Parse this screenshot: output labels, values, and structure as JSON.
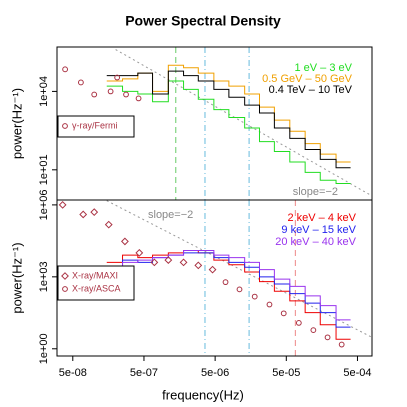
{
  "chart_data": [
    {
      "type": "line",
      "title": "Power Spectral Density",
      "ylabel": "power(Hz⁻¹)",
      "log_x": true,
      "log_y": true,
      "xlim": [
        3e-08,
        0.0008
      ],
      "ylim": [
        0.7,
        500000
      ],
      "yticks": [
        {
          "value": 10,
          "label": "1e+01"
        },
        {
          "value": 10000,
          "label": "1e+04"
        }
      ],
      "series": [
        {
          "name": "1 eV – 3 eV",
          "color": "#22dd22",
          "style": "step",
          "bins": [
            1.5e-07,
            2.5e-07,
            4.1e-07,
            6.6e-07,
            1.1e-06,
            1.8e-06,
            2.9e-06,
            4.8e-06,
            7.8e-06,
            1.3e-05,
            2.1e-05,
            3.4e-05,
            5.6e-05,
            9.2e-05,
            0.00015,
            0.00025,
            0.0004
          ],
          "values": [
            16000,
            10000,
            8000,
            4000,
            25000,
            12000,
            5000,
            2000,
            1000,
            400,
            120,
            50,
            20,
            8,
            4,
            3
          ]
        },
        {
          "name": "0.5 GeV – 50 GeV",
          "color": "#f0a000",
          "style": "step",
          "bins": [
            1.5e-07,
            2.5e-07,
            4.1e-07,
            6.6e-07,
            1.1e-06,
            1.8e-06,
            2.9e-06,
            4.8e-06,
            7.8e-06,
            1.3e-05,
            2.1e-05,
            3.4e-05,
            5.6e-05,
            9.2e-05,
            0.00015,
            0.00025,
            0.0004
          ],
          "values": [
            25000,
            30000,
            50000,
            10000,
            100000,
            80000,
            50000,
            25000,
            16000,
            8000,
            2500,
            800,
            300,
            100,
            40,
            20
          ]
        },
        {
          "name": "0.4 TeV – 10 TeV",
          "color": "#000000",
          "style": "step",
          "bins": [
            1.5e-07,
            2.5e-07,
            4.1e-07,
            6.6e-07,
            1.1e-06,
            1.8e-06,
            2.9e-06,
            4.8e-06,
            7.8e-06,
            1.3e-05,
            2.1e-05,
            3.4e-05,
            5.6e-05,
            9.2e-05,
            0.00015,
            0.00025,
            0.0004
          ],
          "values": [
            40000,
            40000,
            50000,
            8000,
            60000,
            40000,
            25000,
            12000,
            6000,
            3000,
            1500,
            400,
            160,
            60,
            25,
            12
          ]
        },
        {
          "name": "γ-ray/Fermi",
          "color": "#aa3344",
          "style": "points",
          "marker": "circle",
          "x": [
            3.9e-08,
            6.5e-08,
            1e-07,
            1.7e-07,
            2.1e-07,
            2.8e-07,
            4.2e-07
          ],
          "values": [
            70000,
            22000,
            7600,
            10000,
            34000,
            7600,
            5400
          ]
        }
      ],
      "vlines": [
        {
          "x": 1.4e-06,
          "color": "#66cc66",
          "dash": "dashed"
        },
        {
          "x": 3.6e-06,
          "color": "#66bbdd",
          "dash": "dashdot"
        },
        {
          "x": 1.5e-05,
          "color": "#66bbdd",
          "dash": "dashdot"
        }
      ],
      "reference_line": {
        "label": "slope=−2",
        "x": [
          2e-07,
          0.0008
        ],
        "y": [
          400000,
          1
        ]
      }
    },
    {
      "type": "line",
      "xlabel": "frequency(Hz)",
      "ylabel": "power(Hz⁻¹)",
      "log_x": true,
      "log_y": true,
      "xlim": [
        3e-08,
        0.0008
      ],
      "ylim": [
        0.5,
        1600000
      ],
      "xticks": [
        {
          "value": 5e-08,
          "label": "5e-08"
        },
        {
          "value": 5e-07,
          "label": "5e-07"
        },
        {
          "value": 5e-06,
          "label": "5e-06"
        },
        {
          "value": 5e-05,
          "label": "5e-05"
        },
        {
          "value": 0.0005,
          "label": "5e-04"
        }
      ],
      "yticks": [
        {
          "value": 1,
          "label": "1e+00"
        },
        {
          "value": 1000,
          "label": "1e+03"
        },
        {
          "value": 1000000,
          "label": "1e+06"
        }
      ],
      "series": [
        {
          "name": "2 keV – 4 keV",
          "color": "#ee0000",
          "style": "step",
          "bins": [
            1.5e-07,
            2.5e-07,
            4.1e-07,
            6.6e-07,
            1.1e-06,
            1.8e-06,
            2.9e-06,
            4.8e-06,
            7.8e-06,
            1.3e-05,
            2.1e-05,
            3.4e-05,
            5.6e-05,
            9.2e-05,
            0.00015,
            0.00025,
            0.0004
          ],
          "values": [
            4000,
            8000,
            6300,
            8000,
            10000,
            12600,
            10000,
            5000,
            3200,
            1600,
            630,
            250,
            100,
            32,
            10,
            2.5
          ]
        },
        {
          "name": "9 keV – 15 keV",
          "color": "#2222ee",
          "style": "step",
          "bins": [
            1.5e-07,
            2.5e-07,
            4.1e-07,
            6.6e-07,
            1.1e-06,
            1.8e-06,
            2.9e-06,
            4.8e-06,
            7.8e-06,
            1.3e-05,
            2.1e-05,
            3.4e-05,
            5.6e-05,
            9.2e-05,
            0.00015,
            0.00025,
            0.0004
          ],
          "values": [
            2500,
            5000,
            4000,
            6300,
            8000,
            10000,
            10000,
            6300,
            4000,
            2500,
            1000,
            500,
            200,
            80,
            32,
            8
          ]
        },
        {
          "name": "20 keV – 40 keV",
          "color": "#9933ee",
          "style": "step",
          "bins": [
            1.5e-07,
            2.5e-07,
            4.1e-07,
            6.6e-07,
            1.1e-06,
            1.8e-06,
            2.9e-06,
            4.8e-06,
            7.8e-06,
            1.3e-05,
            2.1e-05,
            3.4e-05,
            5.6e-05,
            9.2e-05,
            0.00015,
            0.00025,
            0.0004
          ],
          "values": [
            2000,
            4000,
            5000,
            6300,
            8000,
            12600,
            12600,
            8000,
            6300,
            4000,
            2000,
            800,
            400,
            160,
            63,
            16
          ]
        },
        {
          "name": "X-ray/MAXI",
          "color": "#aa3344",
          "style": "points",
          "marker": "diamond",
          "x": [
            3.6e-08,
            7e-08,
            1e-07,
            1.6e-07,
            2.7e-07,
            4.3e-07,
            7e-07,
            1.1e-06,
            1.8e-06,
            2.9e-06,
            4.6e-06
          ],
          "values": [
            1000000,
            400000,
            500000,
            150000,
            30000,
            10000,
            4000,
            5000,
            4000,
            3000,
            2000
          ]
        },
        {
          "name": "X-ray/ASCA",
          "color": "#aa3344",
          "style": "points",
          "marker": "circle",
          "x": [
            7e-06,
            1.1e-05,
            1.8e-05,
            2.9e-05,
            4.6e-05,
            7.5e-05,
            0.00012,
            0.00019,
            0.0003
          ],
          "values": [
            600,
            300,
            150,
            70,
            30,
            12,
            6,
            3,
            1.5
          ]
        }
      ],
      "vlines": [
        {
          "x": 3.6e-06,
          "color": "#66bbdd",
          "dash": "dashdot"
        },
        {
          "x": 1.5e-05,
          "color": "#66bbdd",
          "dash": "dashdot"
        },
        {
          "x": 6.7e-05,
          "color": "#ee8888",
          "dash": "dashed"
        }
      ],
      "reference_line": {
        "label": "slope=−2",
        "x": [
          1.5e-07,
          0.0008
        ],
        "y": [
          1500000,
          3
        ]
      }
    }
  ]
}
